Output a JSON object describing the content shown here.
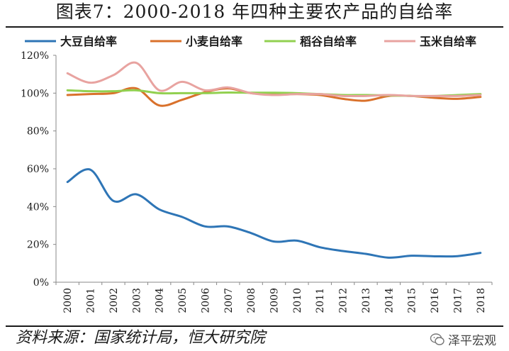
{
  "title": "图表7：2000-2018 年四种主要农产品的自给率",
  "source": "资料来源：国家统计局，恒大研究院",
  "watermark": "泽平宏观",
  "colors": {
    "soybean": "#2E75B6",
    "wheat": "#D9712B",
    "rice": "#92D050",
    "corn": "#E8A3A0"
  },
  "chart_data": {
    "type": "line",
    "x": [
      "2000",
      "2001",
      "2002",
      "2003",
      "2004",
      "2005",
      "2006",
      "2007",
      "2008",
      "2009",
      "2010",
      "2011",
      "2012",
      "2013",
      "2014",
      "2015",
      "2016",
      "2017",
      "2018"
    ],
    "ylim": [
      0,
      120
    ],
    "yticks": [
      "0%",
      "20%",
      "40%",
      "60%",
      "80%",
      "100%",
      "120%"
    ],
    "legend_position": "top",
    "series": [
      {
        "name": "大豆自给率",
        "color_key": "soybean",
        "values": [
          53,
          59.5,
          43,
          46.5,
          38.5,
          34.5,
          29.5,
          29.5,
          26,
          21.5,
          22,
          18.5,
          16.5,
          15,
          13,
          14,
          13.7,
          13.8,
          15.5
        ]
      },
      {
        "name": "小麦自给率",
        "color_key": "wheat",
        "values": [
          99,
          99.5,
          100,
          102.5,
          93.5,
          96.5,
          100.5,
          102.5,
          100,
          99.5,
          99.5,
          99,
          97,
          96,
          98.5,
          98.5,
          97.5,
          97,
          98
        ]
      },
      {
        "name": "稻谷自给率",
        "color_key": "rice",
        "values": [
          101.5,
          101,
          101,
          101.5,
          100,
          100,
          100,
          100.3,
          100.2,
          100.2,
          100,
          99.5,
          99,
          99,
          98.8,
          98.5,
          98.5,
          99,
          99.5
        ]
      },
      {
        "name": "玉米自给率",
        "color_key": "corn",
        "values": [
          110.5,
          105.5,
          109.5,
          116,
          101.5,
          106,
          101.5,
          103,
          100,
          99,
          99.5,
          99.5,
          98.5,
          98.5,
          99,
          98.5,
          98.5,
          98.5,
          99
        ]
      }
    ]
  }
}
